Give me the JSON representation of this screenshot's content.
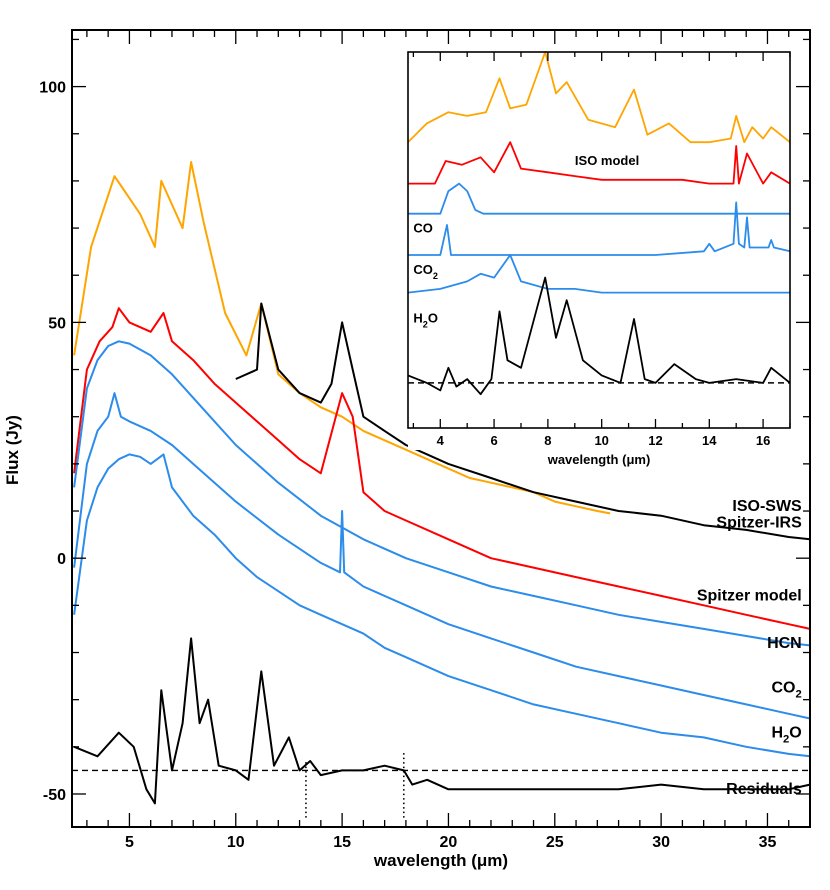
{
  "chart_data": [
    {
      "type": "line",
      "panel": "main",
      "xlabel": "wavelength (μm)",
      "ylabel": "Flux (Jy)",
      "xlim": [
        2.3,
        37
      ],
      "ylim": [
        -57,
        112
      ],
      "x_ticks": [
        5,
        10,
        15,
        20,
        25,
        30,
        35
      ],
      "y_ticks": [
        -50,
        0,
        50,
        100
      ],
      "grid": false,
      "dashed_reference_line": {
        "y": -45
      },
      "dotted_markers": [
        {
          "x": 13.3,
          "y": [
            -55,
            -43
          ]
        },
        {
          "x": 17.9,
          "y": [
            -55,
            -41
          ]
        }
      ],
      "colors": {
        "iso": "#FFA500",
        "spitzer": "#000000",
        "model": "#FF0000",
        "molecule": "#2B8CEB"
      },
      "series_labels": [
        {
          "text": "ISO-SWS",
          "color": "#FFA500",
          "x": 36.8,
          "y": 10
        },
        {
          "text": "Spitzer-IRS",
          "color": "#000000",
          "x": 36.8,
          "y": 6.5
        },
        {
          "text": "Spitzer model",
          "color": "#FF0000",
          "x": 36.8,
          "y": -9
        },
        {
          "text": "HCN",
          "color": "#2B8CEB",
          "x": 36.8,
          "y": -19
        },
        {
          "text": "CO",
          "sub": "2",
          "color": "#2B8CEB",
          "x": 36.8,
          "y": -28.5
        },
        {
          "text": "H",
          "sub": "2",
          "tail": "O",
          "color": "#2B8CEB",
          "x": 36.8,
          "y": -38
        },
        {
          "text": "Residuals",
          "color": "#000000",
          "x": 36.8,
          "y": -50
        }
      ],
      "series": [
        {
          "name": "ISO-SWS",
          "color": "#FFA500",
          "x": [
            2.4,
            3.2,
            4.3,
            5.5,
            6.2,
            6.5,
            7.5,
            7.9,
            8.5,
            9.5,
            10.5,
            11.2,
            12,
            13,
            14,
            15,
            16,
            17,
            18,
            19,
            20,
            21,
            22,
            23,
            24,
            25,
            26,
            27,
            27.6
          ],
          "y": [
            43,
            66,
            81,
            73,
            66,
            80,
            70,
            84,
            71,
            52,
            43,
            54,
            39,
            35,
            32,
            30,
            27,
            25,
            23,
            21,
            19,
            17,
            16,
            15,
            14,
            12,
            11,
            10,
            9.5
          ]
        },
        {
          "name": "Spitzer-IRS",
          "color": "#000000",
          "x": [
            10,
            11,
            11.2,
            12,
            13,
            14,
            14.5,
            15,
            15.5,
            16,
            17,
            18,
            19,
            20,
            22,
            24,
            26,
            28,
            30,
            32,
            34,
            36,
            37
          ],
          "y": [
            38,
            40,
            54,
            40,
            35,
            33,
            37,
            50,
            40,
            30,
            27,
            24,
            22,
            20,
            17,
            14,
            12,
            10,
            9,
            7,
            6,
            4.5,
            4
          ]
        },
        {
          "name": "Spitzer model",
          "color": "#FF0000",
          "x": [
            2.4,
            3,
            3.6,
            4.2,
            4.5,
            5,
            6,
            6.6,
            7,
            8,
            9,
            10,
            11,
            12,
            13,
            14,
            15,
            15.5,
            16,
            17,
            18,
            20,
            22,
            24,
            26,
            28,
            30,
            32,
            34,
            36,
            37
          ],
          "y": [
            18,
            40,
            46,
            49,
            53,
            50,
            48,
            52,
            46,
            42,
            37,
            33,
            29,
            25,
            21,
            18,
            35,
            30,
            14,
            10,
            8,
            4,
            0,
            -2,
            -4,
            -6,
            -8,
            -10,
            -12,
            -14,
            -15
          ]
        },
        {
          "name": "HCN",
          "color": "#2B8CEB",
          "x": [
            2.4,
            3,
            3.5,
            4,
            4.5,
            5,
            6,
            7,
            8,
            9,
            10,
            12,
            14,
            16,
            18,
            20,
            22,
            24,
            26,
            28,
            30,
            32,
            34,
            36,
            37
          ],
          "y": [
            15,
            36,
            42,
            45,
            46,
            45.5,
            43,
            39,
            34,
            29,
            24,
            16,
            9,
            4,
            0,
            -3,
            -6,
            -8,
            -10,
            -12,
            -13.5,
            -15,
            -16.5,
            -18,
            -18.5
          ]
        },
        {
          "name": "CO2",
          "color": "#2B8CEB",
          "x": [
            2.4,
            3,
            3.5,
            4,
            4.3,
            4.6,
            5,
            6,
            7,
            8,
            9,
            10,
            12,
            14,
            14.9,
            15,
            15.1,
            16,
            18,
            20,
            22,
            24,
            26,
            28,
            30,
            32,
            34,
            36,
            37
          ],
          "y": [
            -2,
            20,
            27,
            30,
            35,
            30,
            29,
            27,
            24,
            20,
            16,
            12,
            5,
            -1,
            -3,
            10,
            -3,
            -6,
            -10,
            -14,
            -17,
            -20,
            -23,
            -25,
            -27,
            -29,
            -31,
            -33,
            -34
          ]
        },
        {
          "name": "H2O",
          "color": "#2B8CEB",
          "x": [
            2.4,
            3,
            3.5,
            4,
            4.5,
            5,
            5.5,
            6,
            6.6,
            7,
            8,
            9,
            10,
            11,
            12,
            13,
            14,
            15,
            16,
            17,
            18,
            20,
            22,
            24,
            26,
            28,
            30,
            32,
            34,
            36,
            37
          ],
          "y": [
            -12,
            8,
            15,
            19,
            21,
            22,
            21.5,
            20,
            22,
            15,
            9,
            5,
            0,
            -4,
            -7,
            -10,
            -12,
            -14,
            -16,
            -19,
            -21,
            -25,
            -28,
            -31,
            -33,
            -35,
            -37,
            -38,
            -40,
            -41.5,
            -42
          ]
        },
        {
          "name": "Residuals",
          "color": "#000000",
          "x": [
            2.4,
            3.5,
            4.5,
            5.2,
            5.8,
            6.2,
            6.5,
            7,
            7.5,
            7.9,
            8.3,
            8.7,
            9.2,
            10,
            10.6,
            11.2,
            11.8,
            12.5,
            13,
            13.5,
            14,
            15,
            16,
            17,
            17.9,
            18.3,
            19,
            20,
            22,
            24,
            26,
            28,
            30,
            32,
            34,
            36,
            37
          ],
          "y": [
            -40,
            -42,
            -37,
            -40,
            -49,
            -52,
            -28,
            -45,
            -35,
            -17,
            -35,
            -30,
            -44,
            -45,
            -47,
            -24,
            -44,
            -38,
            -45,
            -43,
            -46,
            -45,
            -45,
            -44,
            -45,
            -48,
            -47,
            -49,
            -49,
            -49,
            -49,
            -49,
            -48,
            -49,
            -49,
            -49,
            -48
          ]
        }
      ]
    },
    {
      "type": "line",
      "panel": "inset",
      "xlabel": "wavelength (μm)",
      "xlim": [
        2.8,
        17
      ],
      "ylim": [
        0,
        10
      ],
      "x_ticks": [
        4,
        6,
        8,
        10,
        12,
        14,
        16
      ],
      "dashed_reference_line": {
        "y": 1.2
      },
      "series_labels": [
        {
          "text": "ISO model",
          "color": "#FF0000",
          "x": 10.2,
          "y": 7.0
        },
        {
          "text": "CO",
          "color": "#2B8CEB",
          "x": 3.0,
          "y": 5.2
        },
        {
          "text": "CO",
          "sub": "2",
          "color": "#2B8CEB",
          "x": 3.0,
          "y": 4.1
        },
        {
          "text": "H",
          "sub": "2",
          "tail": "O",
          "color": "#2B8CEB",
          "x": 3.0,
          "y": 2.8
        }
      ],
      "series": [
        {
          "name": "ISO-SWS",
          "color": "#FFA500",
          "x": [
            2.8,
            3.5,
            4.3,
            5,
            5.7,
            6.2,
            6.6,
            7.2,
            7.9,
            8.3,
            8.7,
            9.5,
            10.5,
            11.2,
            11.7,
            12.5,
            13.3,
            14,
            14.8,
            15,
            15.3,
            15.6,
            16,
            16.3,
            17
          ],
          "y": [
            7.6,
            8.1,
            8.4,
            8.3,
            8.4,
            9.3,
            8.5,
            8.6,
            10.0,
            8.9,
            9.2,
            8.2,
            8.0,
            9.0,
            7.8,
            8.1,
            7.6,
            7.6,
            7.7,
            8.3,
            7.6,
            8.0,
            7.7,
            8.0,
            7.6
          ]
        },
        {
          "name": "ISO model",
          "color": "#FF0000",
          "x": [
            2.8,
            3.8,
            4.2,
            4.8,
            5.5,
            6.0,
            6.6,
            7,
            8,
            9,
            10,
            11,
            12,
            13,
            14,
            14.9,
            15,
            15.1,
            15.4,
            16,
            16.3,
            17
          ],
          "y": [
            6.5,
            6.5,
            7.1,
            7.0,
            7.2,
            6.8,
            7.6,
            6.9,
            6.8,
            6.7,
            6.6,
            6.6,
            6.6,
            6.6,
            6.5,
            6.5,
            7.5,
            6.5,
            7.3,
            6.5,
            6.8,
            6.5
          ]
        },
        {
          "name": "CO",
          "color": "#2B8CEB",
          "x": [
            2.8,
            4.0,
            4.3,
            4.7,
            5.0,
            5.3,
            5.6,
            6,
            8,
            10,
            12,
            14,
            16,
            17
          ],
          "y": [
            5.7,
            5.7,
            6.3,
            6.5,
            6.3,
            5.8,
            5.7,
            5.7,
            5.7,
            5.7,
            5.7,
            5.7,
            5.7,
            5.7
          ]
        },
        {
          "name": "CO2",
          "color": "#2B8CEB",
          "x": [
            2.8,
            4.0,
            4.25,
            4.4,
            4.6,
            6,
            8,
            10,
            12,
            13.8,
            14.0,
            14.2,
            14.9,
            15.0,
            15.1,
            15.3,
            15.4,
            15.5,
            16.2,
            16.3,
            16.4,
            17
          ],
          "y": [
            4.6,
            4.6,
            5.4,
            4.6,
            4.6,
            4.6,
            4.6,
            4.6,
            4.6,
            4.7,
            4.9,
            4.7,
            4.9,
            6.0,
            4.9,
            4.8,
            5.6,
            4.8,
            4.8,
            5.0,
            4.8,
            4.7
          ]
        },
        {
          "name": "H2O",
          "color": "#2B8CEB",
          "x": [
            2.8,
            4,
            5,
            5.5,
            6,
            6.6,
            7,
            8,
            9,
            10,
            12,
            14,
            16,
            17
          ],
          "y": [
            3.6,
            3.7,
            3.9,
            4.1,
            4.0,
            4.6,
            3.9,
            3.7,
            3.7,
            3.6,
            3.6,
            3.6,
            3.6,
            3.6
          ]
        },
        {
          "name": "Residuals",
          "color": "#000000",
          "x": [
            2.8,
            3.5,
            4.0,
            4.3,
            4.6,
            5.0,
            5.5,
            5.9,
            6.2,
            6.5,
            7.0,
            7.6,
            7.9,
            8.3,
            8.7,
            9.3,
            10,
            10.7,
            11.2,
            11.6,
            12,
            12.7,
            13.5,
            14,
            15,
            16,
            16.3,
            17
          ],
          "y": [
            1.4,
            1.2,
            1.0,
            1.6,
            1.1,
            1.3,
            0.9,
            1.3,
            3.1,
            1.8,
            1.6,
            3.2,
            4.0,
            2.4,
            3.4,
            1.8,
            1.4,
            1.2,
            2.9,
            1.3,
            1.2,
            1.7,
            1.3,
            1.2,
            1.3,
            1.2,
            1.6,
            1.2
          ]
        }
      ]
    }
  ]
}
